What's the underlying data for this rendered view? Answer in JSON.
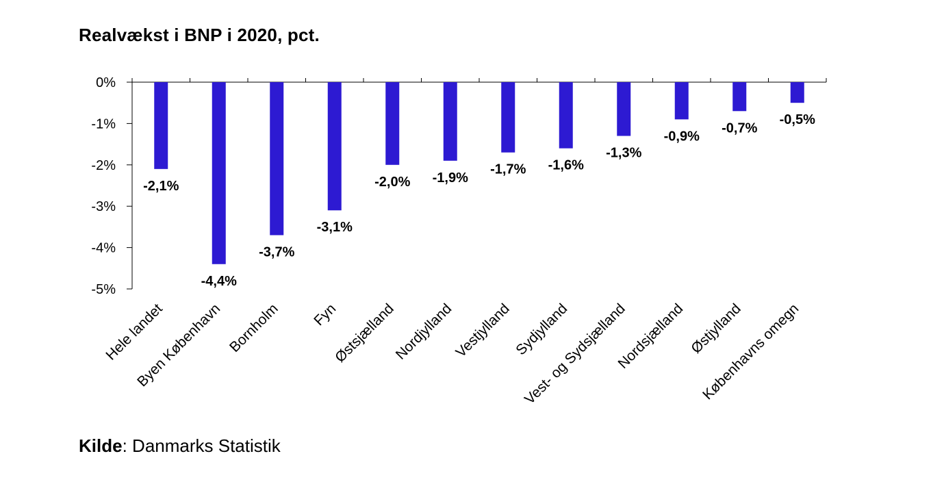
{
  "chart_data": {
    "type": "bar",
    "title": "Realvækst i BNP i 2020, pct.",
    "categories": [
      "Hele landet",
      "Byen København",
      "Bornholm",
      "Fyn",
      "Østsjælland",
      "Nordjylland",
      "Vestjylland",
      "Sydjylland",
      "Vest- og Sydsjælland",
      "Nordsjælland",
      "Østjylland",
      "Københavns omegn"
    ],
    "values": [
      -2.1,
      -4.4,
      -3.7,
      -3.1,
      -2.0,
      -1.9,
      -1.7,
      -1.6,
      -1.3,
      -0.9,
      -0.7,
      -0.5
    ],
    "data_labels": [
      "-2,1%",
      "-4,4%",
      "-3,7%",
      "-3,1%",
      "-2,0%",
      "-1,9%",
      "-1,7%",
      "-1,6%",
      "-1,3%",
      "-0,9%",
      "-0,7%",
      "-0,5%"
    ],
    "yticks": [
      0,
      -1,
      -2,
      -3,
      -4,
      -5
    ],
    "ytick_labels": [
      "0%",
      "-1%",
      "-2%",
      "-3%",
      "-4%",
      "-5%"
    ],
    "ylim": [
      -5,
      0
    ],
    "bar_color": "#2d1ad2",
    "grid": false,
    "legend": "none"
  },
  "source": {
    "label": "Kilde",
    "separator": ":",
    "text": " Danmarks Statistik"
  }
}
